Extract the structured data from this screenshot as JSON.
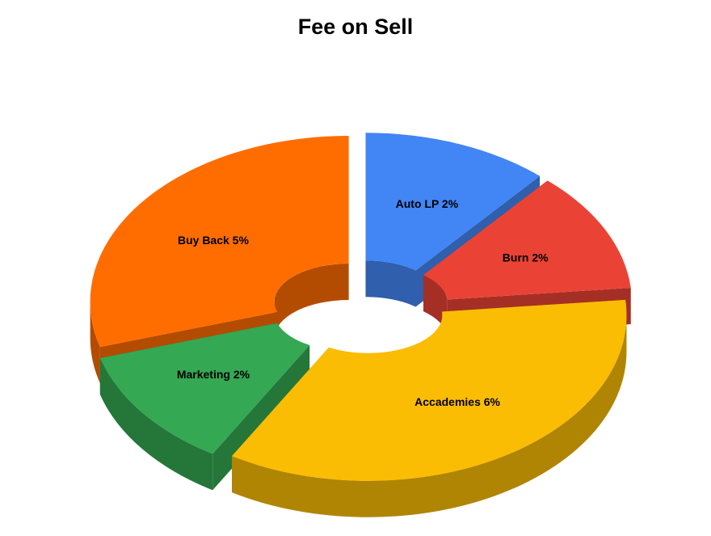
{
  "chart_data": {
    "type": "pie",
    "title": "Fee on Sell",
    "categories": [
      "Auto LP",
      "Burn",
      "Accademies",
      "Marketing",
      "Buy Back"
    ],
    "values": [
      2,
      2,
      6,
      2,
      5
    ],
    "labels": [
      "Auto LP 2%",
      "Burn 2%",
      "Accademies 6%",
      "Marketing 2%",
      "Buy Back 5%"
    ],
    "colors": [
      "#4285f4",
      "#ea4335",
      "#fbbc04",
      "#34a853",
      "#ff6d01"
    ],
    "side_colors": [
      "#2f5fad",
      "#a52f25",
      "#b08503",
      "#257639",
      "#b34c01"
    ],
    "donut": true,
    "exploded": true,
    "three_d": true,
    "legend": "none"
  }
}
